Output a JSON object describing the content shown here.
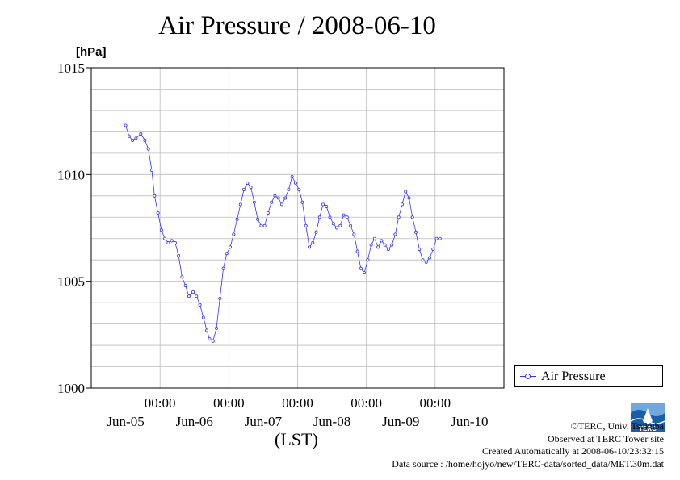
{
  "title": "Air Pressure / 2008-06-10",
  "unit_label": "[hPa]",
  "x_axis_label": "(LST)",
  "legend_label": "Air Pressure",
  "credits": {
    "copyright": "©TERC, Univ. Tsukuba",
    "observed": "Observed at TERC Tower site",
    "created": "Created Automatically at 2008-06-10/23:32:15",
    "source": "Data source : /home/hojyo/new/TERC-data/sorted_data/MET.30m.dat"
  },
  "logo_text": "TERC",
  "colors": {
    "series": "#3333ff",
    "grid": "#bbbbbb",
    "logo": "#1a5ea8"
  },
  "chart_data": {
    "type": "line",
    "ylabel": "[hPa]",
    "xlabel": "(LST)",
    "ylim": [
      1000,
      1015
    ],
    "yticks": [
      1000,
      1005,
      1010,
      1015
    ],
    "xlim": [
      -0.5,
      5.5
    ],
    "x_unit": "days from Jun-05 00:00",
    "xticks": [
      {
        "x": 0.5,
        "time": "00:00",
        "date": "Jun-05"
      },
      {
        "x": 1.5,
        "time": "00:00",
        "date": "Jun-06"
      },
      {
        "x": 2.5,
        "time": "00:00",
        "date": "Jun-07"
      },
      {
        "x": 3.5,
        "time": "00:00",
        "date": "Jun-08"
      },
      {
        "x": 4.5,
        "time": "00:00",
        "date": "Jun-09"
      },
      {
        "x": 5.5,
        "time": "",
        "date": "Jun-10"
      }
    ],
    "grid": true,
    "legend_position": "outside-right-bottom",
    "series": [
      {
        "name": "Air Pressure",
        "points": [
          [
            0.0,
            1012.3
          ],
          [
            0.05,
            1011.8
          ],
          [
            0.1,
            1011.6
          ],
          [
            0.15,
            1011.7
          ],
          [
            0.22,
            1011.9
          ],
          [
            0.28,
            1011.6
          ],
          [
            0.33,
            1011.2
          ],
          [
            0.38,
            1010.2
          ],
          [
            0.42,
            1009.0
          ],
          [
            0.47,
            1008.2
          ],
          [
            0.52,
            1007.4
          ],
          [
            0.57,
            1007.0
          ],
          [
            0.62,
            1006.8
          ],
          [
            0.67,
            1006.9
          ],
          [
            0.72,
            1006.8
          ],
          [
            0.77,
            1006.2
          ],
          [
            0.82,
            1005.2
          ],
          [
            0.87,
            1004.8
          ],
          [
            0.92,
            1004.3
          ],
          [
            0.98,
            1004.5
          ],
          [
            1.03,
            1004.3
          ],
          [
            1.08,
            1003.9
          ],
          [
            1.13,
            1003.3
          ],
          [
            1.18,
            1002.7
          ],
          [
            1.22,
            1002.3
          ],
          [
            1.27,
            1002.2
          ],
          [
            1.32,
            1002.8
          ],
          [
            1.37,
            1004.2
          ],
          [
            1.42,
            1005.6
          ],
          [
            1.47,
            1006.3
          ],
          [
            1.52,
            1006.6
          ],
          [
            1.57,
            1007.2
          ],
          [
            1.62,
            1007.9
          ],
          [
            1.67,
            1008.6
          ],
          [
            1.72,
            1009.3
          ],
          [
            1.77,
            1009.6
          ],
          [
            1.82,
            1009.4
          ],
          [
            1.87,
            1008.7
          ],
          [
            1.92,
            1007.9
          ],
          [
            1.97,
            1007.6
          ],
          [
            2.02,
            1007.6
          ],
          [
            2.07,
            1008.2
          ],
          [
            2.12,
            1008.7
          ],
          [
            2.17,
            1009.0
          ],
          [
            2.22,
            1008.9
          ],
          [
            2.27,
            1008.6
          ],
          [
            2.32,
            1008.9
          ],
          [
            2.37,
            1009.3
          ],
          [
            2.42,
            1009.9
          ],
          [
            2.47,
            1009.6
          ],
          [
            2.52,
            1009.3
          ],
          [
            2.57,
            1008.7
          ],
          [
            2.62,
            1007.6
          ],
          [
            2.67,
            1006.6
          ],
          [
            2.72,
            1006.8
          ],
          [
            2.77,
            1007.3
          ],
          [
            2.82,
            1008.0
          ],
          [
            2.87,
            1008.6
          ],
          [
            2.92,
            1008.5
          ],
          [
            2.97,
            1008.0
          ],
          [
            3.02,
            1007.7
          ],
          [
            3.07,
            1007.5
          ],
          [
            3.12,
            1007.6
          ],
          [
            3.17,
            1008.1
          ],
          [
            3.22,
            1008.0
          ],
          [
            3.27,
            1007.6
          ],
          [
            3.32,
            1007.2
          ],
          [
            3.37,
            1006.4
          ],
          [
            3.42,
            1005.6
          ],
          [
            3.47,
            1005.4
          ],
          [
            3.52,
            1006.0
          ],
          [
            3.57,
            1006.7
          ],
          [
            3.62,
            1007.0
          ],
          [
            3.67,
            1006.6
          ],
          [
            3.72,
            1006.9
          ],
          [
            3.77,
            1006.7
          ],
          [
            3.82,
            1006.5
          ],
          [
            3.87,
            1006.7
          ],
          [
            3.92,
            1007.2
          ],
          [
            3.97,
            1008.0
          ],
          [
            4.02,
            1008.6
          ],
          [
            4.07,
            1009.2
          ],
          [
            4.12,
            1008.9
          ],
          [
            4.17,
            1008.0
          ],
          [
            4.22,
            1007.3
          ],
          [
            4.27,
            1006.5
          ],
          [
            4.32,
            1006.0
          ],
          [
            4.37,
            1005.9
          ],
          [
            4.42,
            1006.1
          ],
          [
            4.47,
            1006.5
          ],
          [
            4.52,
            1007.0
          ],
          [
            4.57,
            1007.0
          ]
        ]
      }
    ]
  }
}
